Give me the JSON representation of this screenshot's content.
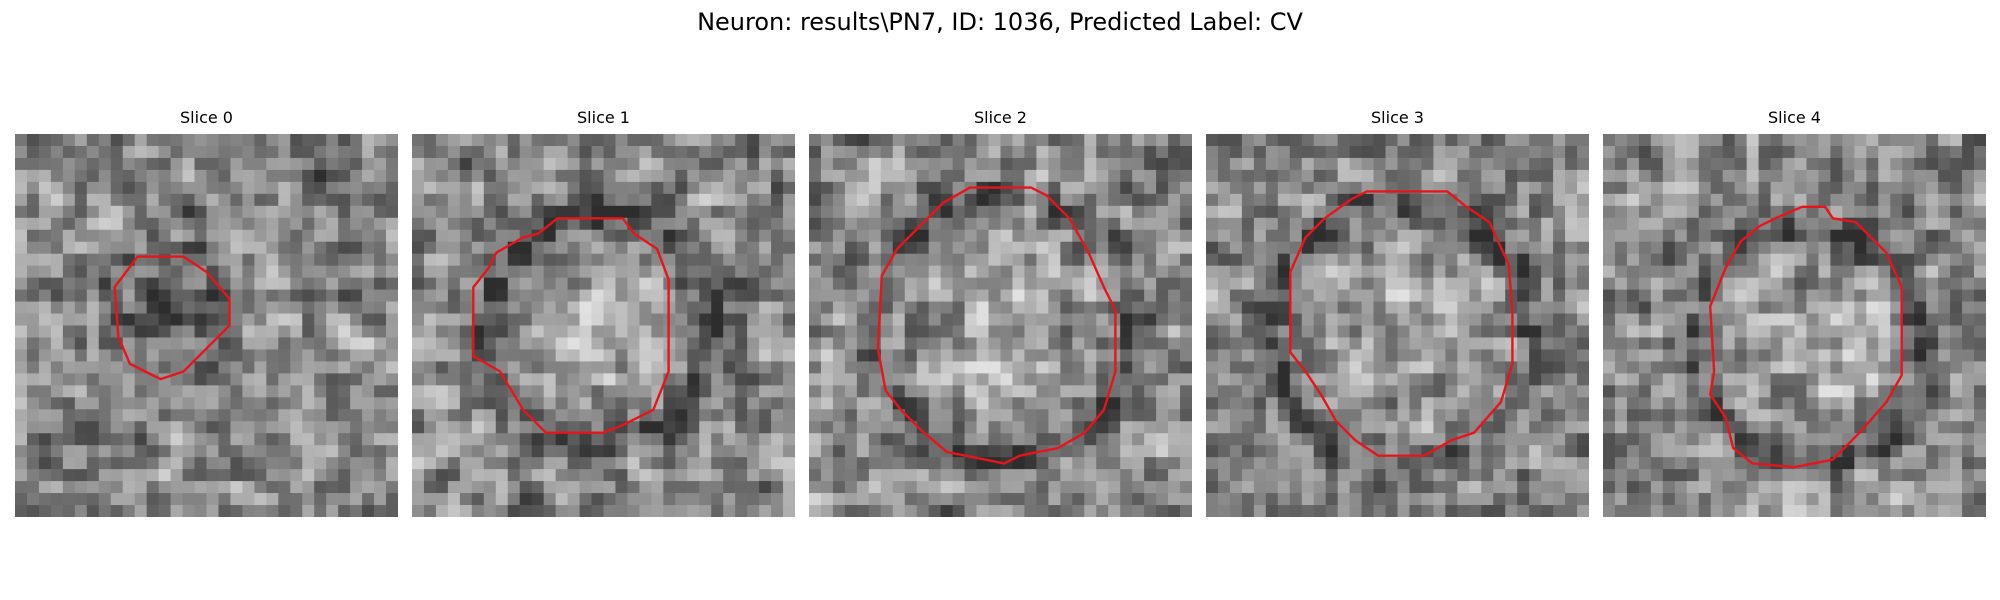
{
  "figure": {
    "title": "Neuron: results\\PN7, ID: 1036, Predicted Label: CV"
  },
  "panels": [
    {
      "title": "Slice 0"
    },
    {
      "title": "Slice 1"
    },
    {
      "title": "Slice 2"
    },
    {
      "title": "Slice 3"
    },
    {
      "title": "Slice 4"
    }
  ],
  "colors": {
    "contour": "#e8141c",
    "background": "#ffffff",
    "text": "#000000"
  },
  "colormap": "gray"
}
